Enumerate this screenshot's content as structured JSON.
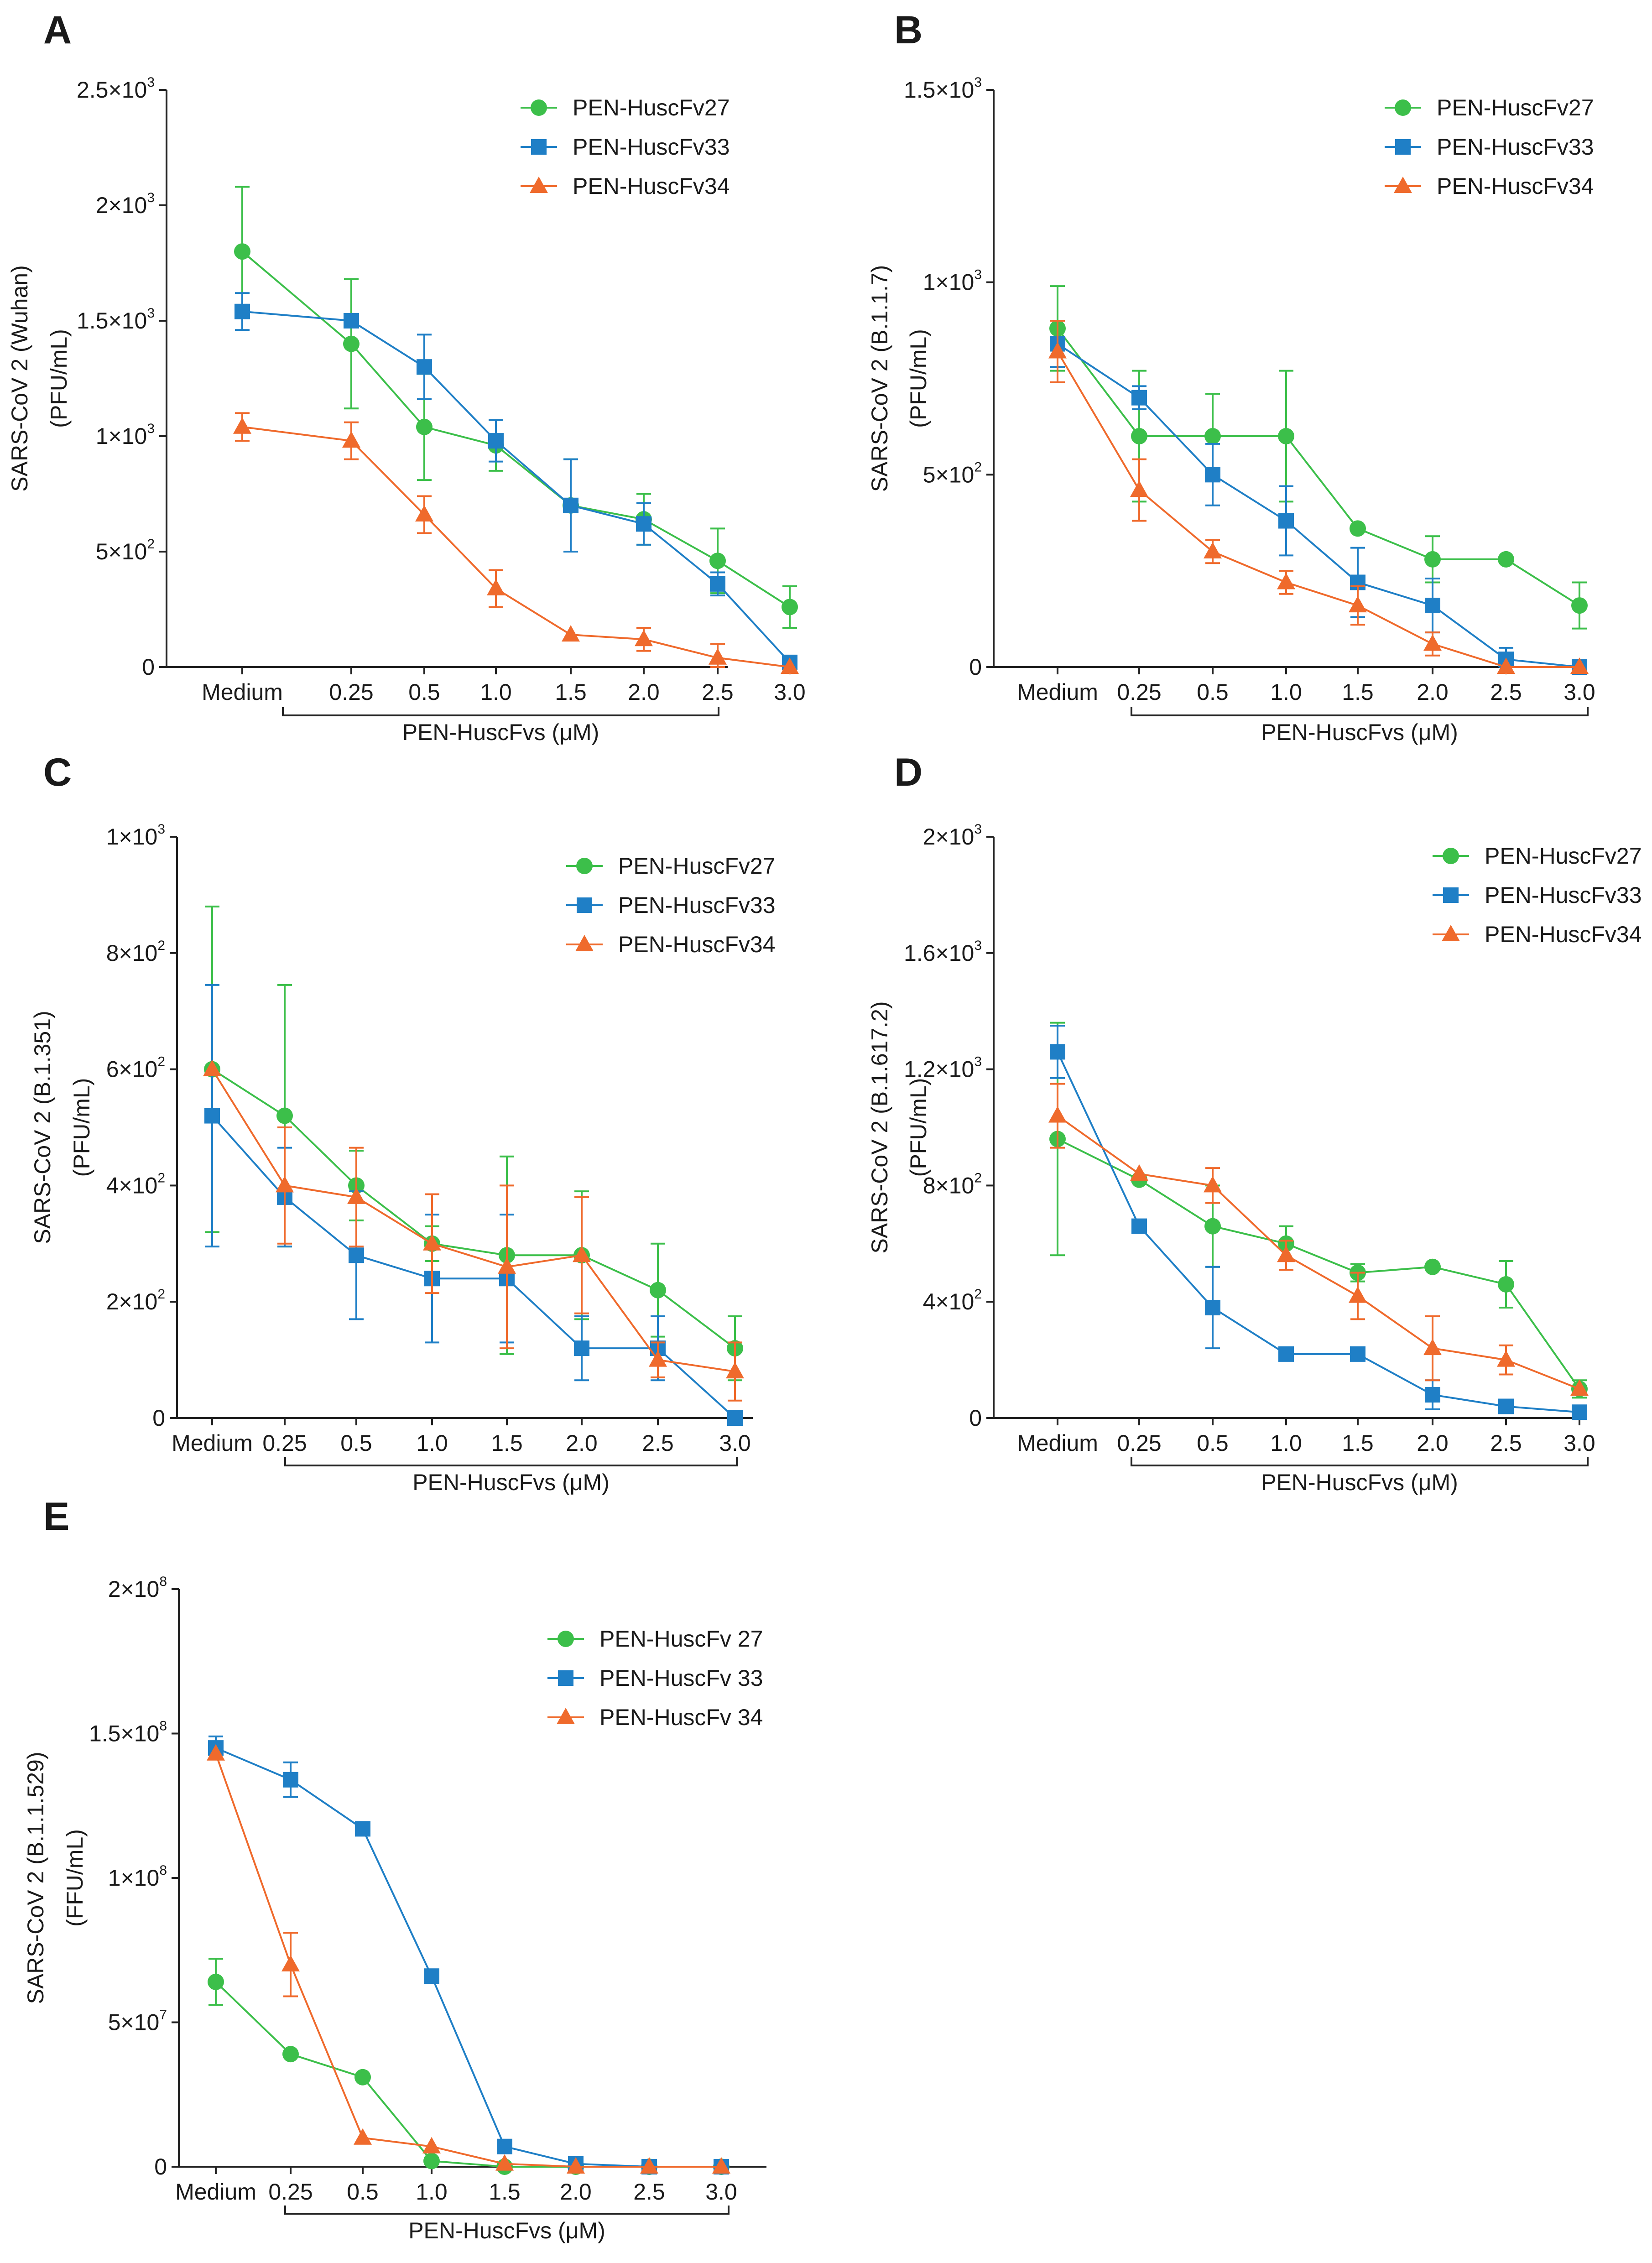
{
  "series_styles": [
    {
      "color": "#3cbf4a",
      "marker": "circle"
    },
    {
      "color": "#1f7fc6",
      "marker": "square"
    },
    {
      "color": "#ef6a2c",
      "marker": "triangle"
    }
  ],
  "chart_data": [
    {
      "panel": "A",
      "type": "line",
      "categories": [
        "Medium",
        "0.25",
        "0.5",
        "1.0",
        "1.5",
        "2.0",
        "2.5",
        "3.0"
      ],
      "xlabel": "PEN-HuscFvs (μM)",
      "ylabel_line1": "SARS-CoV 2  (Wuhan)",
      "ylabel_line2": "(PFU/mL)",
      "ylim": [
        0,
        2500
      ],
      "yticks": [
        {
          "value": 0,
          "base": "0",
          "exp": ""
        },
        {
          "value": 500,
          "base": "5×10",
          "exp": "2"
        },
        {
          "value": 1000,
          "base": "1×10",
          "exp": "3"
        },
        {
          "value": 1500,
          "base": "1.5×10",
          "exp": "3"
        },
        {
          "value": 2000,
          "base": "2×10",
          "exp": "3"
        },
        {
          "value": 2500,
          "base": "2.5×10",
          "exp": "3"
        }
      ],
      "series": [
        {
          "name": "PEN-HuscFv27",
          "values": [
            1800,
            1400,
            1040,
            960,
            700,
            640,
            460,
            260
          ],
          "errors": [
            280,
            280,
            230,
            110,
            200,
            110,
            140,
            90
          ]
        },
        {
          "name": "PEN-HuscFv33",
          "values": [
            1540,
            1500,
            1300,
            980,
            700,
            620,
            360,
            20
          ],
          "errors": [
            80,
            0,
            140,
            90,
            200,
            90,
            50,
            0
          ]
        },
        {
          "name": "PEN-HuscFv34",
          "values": [
            1040,
            980,
            660,
            340,
            140,
            120,
            40,
            0
          ],
          "errors": [
            60,
            80,
            80,
            80,
            0,
            50,
            60,
            0
          ]
        }
      ]
    },
    {
      "panel": "B",
      "type": "line",
      "categories": [
        "Medium",
        "0.25",
        "0.5",
        "1.0",
        "1.5",
        "2.0",
        "2.5",
        "3.0"
      ],
      "xlabel": "PEN-HuscFvs (μM)",
      "ylabel_line1": "SARS-CoV 2  (B.1.1.7)",
      "ylabel_line2": "(PFU/mL)",
      "ylim": [
        0,
        1500
      ],
      "yticks": [
        {
          "value": 0,
          "base": "0",
          "exp": ""
        },
        {
          "value": 500,
          "base": "5×10",
          "exp": "2"
        },
        {
          "value": 1000,
          "base": "1×10",
          "exp": "3"
        },
        {
          "value": 1500,
          "base": "1.5×10",
          "exp": "3"
        }
      ],
      "series": [
        {
          "name": "PEN-HuscFv27",
          "values": [
            880,
            600,
            600,
            600,
            360,
            280,
            280,
            160
          ],
          "errors": [
            110,
            170,
            110,
            170,
            0,
            60,
            0,
            60
          ]
        },
        {
          "name": "PEN-HuscFv33",
          "values": [
            840,
            700,
            500,
            380,
            220,
            160,
            20,
            0
          ],
          "errors": [
            60,
            30,
            80,
            90,
            90,
            70,
            30,
            0
          ]
        },
        {
          "name": "PEN-HuscFv34",
          "values": [
            820,
            460,
            300,
            220,
            160,
            60,
            0,
            0
          ],
          "errors": [
            80,
            80,
            30,
            30,
            50,
            30,
            0,
            0
          ]
        }
      ]
    },
    {
      "panel": "C",
      "type": "line",
      "categories": [
        "Medium",
        "0.25",
        "0.5",
        "1.0",
        "1.5",
        "2.0",
        "2.5",
        "3.0"
      ],
      "xlabel": "PEN-HuscFvs (μM)",
      "ylabel_line1": "SARS-CoV 2  (B.1.351)",
      "ylabel_line2": "(PFU/mL)",
      "ylim": [
        0,
        1000
      ],
      "yticks": [
        {
          "value": 0,
          "base": "0",
          "exp": ""
        },
        {
          "value": 200,
          "base": "2×10",
          "exp": "2"
        },
        {
          "value": 400,
          "base": "4×10",
          "exp": "2"
        },
        {
          "value": 600,
          "base": "6×10",
          "exp": "2"
        },
        {
          "value": 800,
          "base": "8×10",
          "exp": "2"
        },
        {
          "value": 1000,
          "base": "1×10",
          "exp": "3"
        }
      ],
      "series": [
        {
          "name": "PEN-HuscFv27",
          "values": [
            600,
            520,
            400,
            300,
            280,
            280,
            220,
            120
          ],
          "errors": [
            280,
            225,
            60,
            30,
            170,
            110,
            80,
            55
          ]
        },
        {
          "name": "PEN-HuscFv33",
          "values": [
            520,
            380,
            280,
            240,
            240,
            120,
            120,
            0
          ],
          "errors": [
            225,
            85,
            110,
            110,
            110,
            55,
            55,
            0
          ]
        },
        {
          "name": "PEN-HuscFv34",
          "values": [
            600,
            400,
            380,
            300,
            260,
            280,
            100,
            80
          ],
          "errors": [
            0,
            100,
            85,
            85,
            140,
            100,
            30,
            50
          ]
        }
      ]
    },
    {
      "panel": "D",
      "type": "line",
      "categories": [
        "Medium",
        "0.25",
        "0.5",
        "1.0",
        "1.5",
        "2.0",
        "2.5",
        "3.0"
      ],
      "xlabel": "PEN-HuscFvs (μM)",
      "ylabel_line1": "SARS-CoV 2  (B.1.617.2)",
      "ylabel_line2": "(PFU/mL)",
      "ylim": [
        0,
        2000
      ],
      "yticks": [
        {
          "value": 0,
          "base": "0",
          "exp": ""
        },
        {
          "value": 400,
          "base": "4×10",
          "exp": "2"
        },
        {
          "value": 800,
          "base": "8×10",
          "exp": "2"
        },
        {
          "value": 1200,
          "base": "1.2×10",
          "exp": "3"
        },
        {
          "value": 1600,
          "base": "1.6×10",
          "exp": "3"
        },
        {
          "value": 2000,
          "base": "2×10",
          "exp": "3"
        }
      ],
      "series": [
        {
          "name": "PEN-HuscFv27",
          "values": [
            960,
            820,
            660,
            600,
            500,
            520,
            460,
            100
          ],
          "errors": [
            400,
            0,
            140,
            60,
            30,
            0,
            80,
            30
          ]
        },
        {
          "name": "PEN-HuscFv33",
          "values": [
            1260,
            660,
            380,
            220,
            220,
            80,
            40,
            20
          ],
          "errors": [
            90,
            0,
            140,
            0,
            0,
            50,
            0,
            0
          ]
        },
        {
          "name": "PEN-HuscFv34",
          "values": [
            1040,
            840,
            800,
            560,
            420,
            240,
            200,
            100
          ],
          "errors": [
            110,
            0,
            60,
            50,
            80,
            110,
            50,
            0
          ]
        }
      ]
    },
    {
      "panel": "E",
      "type": "line",
      "categories": [
        "Medium",
        "0.25",
        "0.5",
        "1.0",
        "1.5",
        "2.0",
        "2.5",
        "3.0"
      ],
      "xlabel": "PEN-HuscFvs (μM)",
      "ylabel_line1": "SARS-CoV 2  (B.1.1.529)",
      "ylabel_line2": "(FFU/mL)",
      "ylim": [
        0,
        200000000
      ],
      "yticks": [
        {
          "value": 0,
          "base": "0",
          "exp": ""
        },
        {
          "value": 50000000,
          "base": "5×10",
          "exp": "7"
        },
        {
          "value": 100000000,
          "base": "1×10",
          "exp": "8"
        },
        {
          "value": 150000000,
          "base": "1.5×10",
          "exp": "8"
        },
        {
          "value": 200000000,
          "base": "2×10",
          "exp": "8"
        }
      ],
      "series": [
        {
          "name": "PEN-HuscFv 27",
          "values": [
            64000000,
            39000000,
            31000000,
            2000000,
            0,
            0,
            0,
            0
          ],
          "errors": [
            8000000,
            0,
            0,
            0,
            0,
            0,
            0,
            0
          ]
        },
        {
          "name": "PEN-HuscFv 33",
          "values": [
            145000000,
            134000000,
            117000000,
            66000000,
            7000000,
            1000000,
            0,
            0
          ],
          "errors": [
            4000000,
            6000000,
            0,
            0,
            0,
            0,
            0,
            0
          ]
        },
        {
          "name": "PEN-HuscFv 34",
          "values": [
            143000000,
            70000000,
            10000000,
            7000000,
            1000000,
            0,
            0,
            0
          ],
          "errors": [
            0,
            11000000,
            0,
            0,
            0,
            0,
            0,
            0
          ]
        }
      ]
    }
  ]
}
